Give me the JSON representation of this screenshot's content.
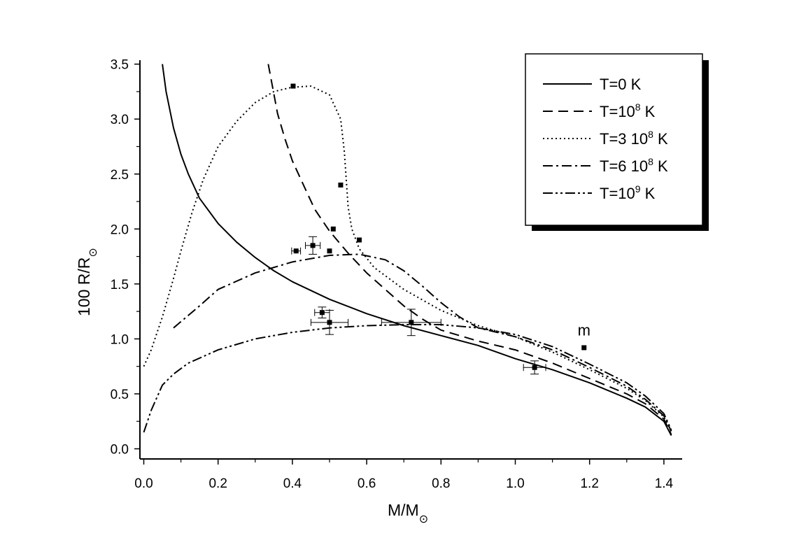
{
  "chart_data": {
    "type": "line",
    "title": "",
    "xlabel": {
      "main": "M/M",
      "sub": "⊙"
    },
    "ylabel": {
      "main": "100 R/R",
      "sub": "⊙"
    },
    "xlim": [
      0.0,
      1.45
    ],
    "ylim": [
      0.0,
      3.5
    ],
    "x_ticks": [
      "0.0",
      "0.2",
      "0.4",
      "0.6",
      "0.8",
      "1.0",
      "1.2",
      "1.4"
    ],
    "y_ticks": [
      "0.0",
      "0.5",
      "1.0",
      "1.5",
      "2.0",
      "2.5",
      "3.0",
      "3.5"
    ],
    "grid": false,
    "legend_position": "top-right",
    "series": [
      {
        "name": "T=0 K",
        "legend": {
          "pre": "T=0 K",
          "sup": "",
          "post": ""
        },
        "dash": "solid",
        "points": [
          [
            0.05,
            3.5
          ],
          [
            0.06,
            3.25
          ],
          [
            0.08,
            2.92
          ],
          [
            0.1,
            2.68
          ],
          [
            0.12,
            2.5
          ],
          [
            0.15,
            2.28
          ],
          [
            0.2,
            2.05
          ],
          [
            0.25,
            1.88
          ],
          [
            0.3,
            1.74
          ],
          [
            0.35,
            1.62
          ],
          [
            0.4,
            1.52
          ],
          [
            0.5,
            1.36
          ],
          [
            0.6,
            1.23
          ],
          [
            0.7,
            1.12
          ],
          [
            0.8,
            1.03
          ],
          [
            0.9,
            0.94
          ],
          [
            1.0,
            0.82
          ],
          [
            1.1,
            0.72
          ],
          [
            1.2,
            0.6
          ],
          [
            1.3,
            0.46
          ],
          [
            1.35,
            0.38
          ],
          [
            1.4,
            0.25
          ],
          [
            1.42,
            0.12
          ]
        ]
      },
      {
        "name": "T=10^8 K",
        "legend": {
          "pre": "T=10",
          "sup": "8",
          "post": " K"
        },
        "dash": "14,8",
        "points": [
          [
            0.335,
            3.5
          ],
          [
            0.36,
            3.05
          ],
          [
            0.38,
            2.82
          ],
          [
            0.4,
            2.62
          ],
          [
            0.43,
            2.4
          ],
          [
            0.46,
            2.18
          ],
          [
            0.5,
            1.98
          ],
          [
            0.55,
            1.78
          ],
          [
            0.6,
            1.6
          ],
          [
            0.65,
            1.45
          ],
          [
            0.7,
            1.3
          ],
          [
            0.75,
            1.18
          ],
          [
            0.8,
            1.08
          ],
          [
            0.9,
            0.98
          ],
          [
            1.0,
            0.9
          ],
          [
            1.1,
            0.78
          ],
          [
            1.2,
            0.64
          ],
          [
            1.3,
            0.5
          ],
          [
            1.35,
            0.41
          ],
          [
            1.4,
            0.27
          ],
          [
            1.42,
            0.13
          ]
        ]
      },
      {
        "name": "T=3 10^8 K",
        "legend": {
          "pre": "T=3 10",
          "sup": "8",
          "post": " K"
        },
        "dash": "2,4",
        "points": [
          [
            0.0,
            0.75
          ],
          [
            0.02,
            0.9
          ],
          [
            0.05,
            1.2
          ],
          [
            0.08,
            1.55
          ],
          [
            0.1,
            1.8
          ],
          [
            0.13,
            2.15
          ],
          [
            0.16,
            2.45
          ],
          [
            0.2,
            2.75
          ],
          [
            0.25,
            2.98
          ],
          [
            0.3,
            3.15
          ],
          [
            0.35,
            3.25
          ],
          [
            0.4,
            3.29
          ],
          [
            0.45,
            3.3
          ],
          [
            0.5,
            3.22
          ],
          [
            0.53,
            3.0
          ],
          [
            0.54,
            2.7
          ],
          [
            0.545,
            2.45
          ],
          [
            0.55,
            2.2
          ],
          [
            0.56,
            2.0
          ],
          [
            0.58,
            1.82
          ],
          [
            0.62,
            1.65
          ],
          [
            0.7,
            1.45
          ],
          [
            0.8,
            1.26
          ],
          [
            0.9,
            1.12
          ],
          [
            1.0,
            1.02
          ],
          [
            1.1,
            0.88
          ],
          [
            1.2,
            0.72
          ],
          [
            1.3,
            0.55
          ],
          [
            1.35,
            0.44
          ],
          [
            1.4,
            0.29
          ],
          [
            1.42,
            0.15
          ]
        ]
      },
      {
        "name": "T=6 10^8 K",
        "legend": {
          "pre": "T=6 10",
          "sup": "8",
          "post": " K"
        },
        "dash": "14,5,3,5",
        "points": [
          [
            0.08,
            1.1
          ],
          [
            0.15,
            1.3
          ],
          [
            0.2,
            1.45
          ],
          [
            0.3,
            1.6
          ],
          [
            0.4,
            1.7
          ],
          [
            0.5,
            1.76
          ],
          [
            0.58,
            1.77
          ],
          [
            0.65,
            1.72
          ],
          [
            0.7,
            1.62
          ],
          [
            0.75,
            1.48
          ],
          [
            0.8,
            1.33
          ],
          [
            0.85,
            1.2
          ],
          [
            0.9,
            1.1
          ],
          [
            1.0,
            1.02
          ],
          [
            1.1,
            0.9
          ],
          [
            1.2,
            0.74
          ],
          [
            1.3,
            0.57
          ],
          [
            1.35,
            0.45
          ],
          [
            1.4,
            0.3
          ],
          [
            1.42,
            0.16
          ]
        ]
      },
      {
        "name": "T=10^9 K",
        "legend": {
          "pre": "T=10",
          "sup": "9",
          "post": " K"
        },
        "dash": "14,4,3,4,3,4",
        "points": [
          [
            0.0,
            0.15
          ],
          [
            0.02,
            0.35
          ],
          [
            0.05,
            0.58
          ],
          [
            0.08,
            0.68
          ],
          [
            0.12,
            0.78
          ],
          [
            0.2,
            0.9
          ],
          [
            0.3,
            1.0
          ],
          [
            0.4,
            1.06
          ],
          [
            0.5,
            1.1
          ],
          [
            0.6,
            1.12
          ],
          [
            0.7,
            1.13
          ],
          [
            0.8,
            1.13
          ],
          [
            0.9,
            1.1
          ],
          [
            1.0,
            1.04
          ],
          [
            1.1,
            0.93
          ],
          [
            1.2,
            0.77
          ],
          [
            1.3,
            0.6
          ],
          [
            1.35,
            0.48
          ],
          [
            1.4,
            0.32
          ],
          [
            1.42,
            0.17
          ]
        ]
      }
    ],
    "observations": [
      {
        "x": 0.402,
        "y": 3.3
      },
      {
        "x": 0.53,
        "y": 2.4
      },
      {
        "x": 0.51,
        "y": 2.0
      },
      {
        "x": 0.58,
        "y": 1.9
      },
      {
        "x": 0.5,
        "y": 1.8
      },
      {
        "x": 0.41,
        "y": 1.8,
        "xerr": 0.012
      },
      {
        "x": 0.455,
        "y": 1.85,
        "xerr": 0.02,
        "yerr": 0.08
      },
      {
        "x": 0.48,
        "y": 1.24,
        "xerr": 0.02,
        "yerr": 0.05
      },
      {
        "x": 0.5,
        "y": 1.15,
        "xerr": 0.05,
        "yerr": 0.11
      },
      {
        "x": 0.72,
        "y": 1.15,
        "xerr": 0.08,
        "yerr": 0.12
      },
      {
        "x": 1.052,
        "y": 0.74,
        "xerr": 0.03,
        "yerr": 0.06
      },
      {
        "x": 1.185,
        "y": 0.92
      }
    ],
    "annotations": [
      {
        "text": "m",
        "x": 1.185,
        "y": 1.03
      }
    ]
  }
}
